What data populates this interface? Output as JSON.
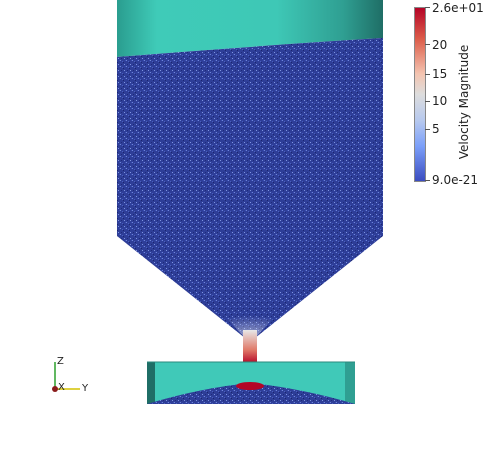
{
  "colorbar": {
    "title": "Velocity Magnitude",
    "labels": [
      "2.6e+01",
      "20",
      "15",
      "10",
      "5",
      "9.0e-21"
    ]
  },
  "axes_triad": {
    "z": "Z",
    "x": "X",
    "y": "Y"
  },
  "colors": {
    "upper_cylinder": "#3ec8b6",
    "particles_low": "#2f3f9e",
    "particles_high": "#b40426",
    "base_tray": "#40c9b8"
  }
}
